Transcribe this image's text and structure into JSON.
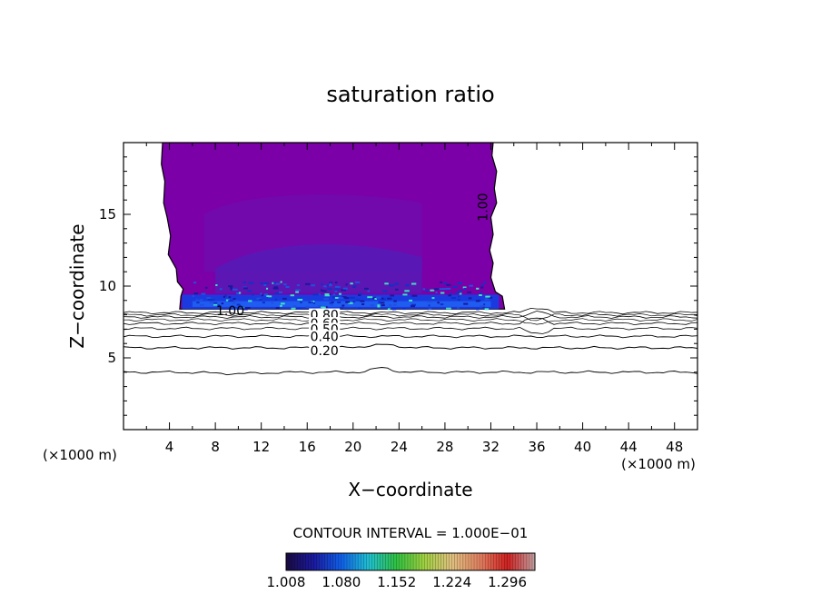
{
  "chart_data": {
    "type": "contour",
    "title": "saturation ratio",
    "xlabel": "X−coordinate",
    "ylabel": "Z−coordinate",
    "x_units_left": "(×1000 m)",
    "x_units_right": "(×1000 m)",
    "xlim": [
      0,
      50
    ],
    "ylim": [
      0,
      20
    ],
    "x_ticks": [
      4,
      8,
      12,
      16,
      20,
      24,
      28,
      32,
      36,
      40,
      44,
      48
    ],
    "y_ticks": [
      5,
      10,
      15
    ],
    "contour_interval_text": "CONTOUR INTERVAL = 1.000E−01",
    "contour_levels": [
      0.2,
      0.3,
      0.4,
      0.5,
      0.6,
      0.7,
      0.8,
      0.9,
      1.0
    ],
    "contour_labels": [
      {
        "text": "1.00",
        "x": 9.3,
        "z": 8.3
      },
      {
        "text": "0.80",
        "x": 17.5,
        "z": 8.0
      },
      {
        "text": "0.60",
        "x": 17.5,
        "z": 7.4
      },
      {
        "text": "0.50",
        "x": 17.5,
        "z": 7.0
      },
      {
        "text": "0.40",
        "x": 17.5,
        "z": 6.5
      },
      {
        "text": "0.20",
        "x": 17.5,
        "z": 5.5
      },
      {
        "text": "1.00",
        "x": 31.3,
        "z": 15.5
      }
    ],
    "colorbar": {
      "ticks": [
        "1.008",
        "1.080",
        "1.152",
        "1.224",
        "1.296"
      ],
      "min": 1.008,
      "max": 1.332,
      "colors": [
        "#1a0a40",
        "#1a1aa0",
        "#1060e8",
        "#20c0d0",
        "#30c040",
        "#a0d040",
        "#e0c080",
        "#e08060",
        "#d02020",
        "#c0a0a0"
      ]
    },
    "supersaturated_region": {
      "x_range": [
        3.4,
        33.2
      ],
      "z_range": [
        8.4,
        20
      ],
      "dominant_color": "#7b00a8"
    }
  }
}
